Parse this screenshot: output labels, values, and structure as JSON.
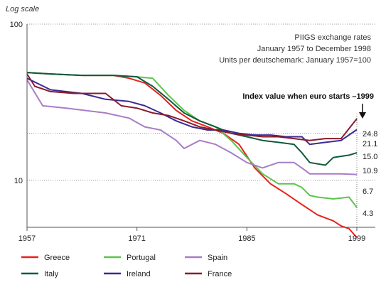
{
  "chart_data": {
    "type": "line",
    "scale_label": "Log scale",
    "notes": [
      "PIIGS exchange rates",
      "January 1957 to December 1998",
      "Units per deutschemark: January 1957=100"
    ],
    "annotation": "Index value when euro starts –1999",
    "y_scale": "log",
    "ylim": [
      5,
      100
    ],
    "xlim": [
      1957,
      1999
    ],
    "x_ticks": [
      "1957",
      "1971",
      "1985",
      "1999"
    ],
    "y_ticks": [
      "100",
      "10"
    ],
    "legend_placement": "bottom",
    "series": [
      {
        "name": "Greece",
        "color": "#e8211d",
        "end_label": "4.3",
        "points": [
          [
            1957,
            49
          ],
          [
            1960,
            48
          ],
          [
            1964,
            47
          ],
          [
            1968,
            47
          ],
          [
            1970,
            45
          ],
          [
            1972,
            42
          ],
          [
            1974,
            35
          ],
          [
            1976,
            28
          ],
          [
            1978,
            24
          ],
          [
            1980,
            22
          ],
          [
            1982,
            20
          ],
          [
            1984,
            17
          ],
          [
            1986,
            12
          ],
          [
            1988,
            9.5
          ],
          [
            1990,
            8.2
          ],
          [
            1992,
            7
          ],
          [
            1994,
            6
          ],
          [
            1996,
            5.5
          ],
          [
            1997,
            5.1
          ],
          [
            1998,
            4.9
          ],
          [
            1999,
            4.3
          ]
        ]
      },
      {
        "name": "Portugal",
        "color": "#5dc44c",
        "end_label": "6.7",
        "points": [
          [
            1957,
            49
          ],
          [
            1960,
            48
          ],
          [
            1964,
            47
          ],
          [
            1968,
            47
          ],
          [
            1971,
            46
          ],
          [
            1973,
            45
          ],
          [
            1975,
            35
          ],
          [
            1977,
            28
          ],
          [
            1979,
            24
          ],
          [
            1981,
            22
          ],
          [
            1983,
            18
          ],
          [
            1985,
            14
          ],
          [
            1987,
            11
          ],
          [
            1989,
            9.5
          ],
          [
            1991,
            9.5
          ],
          [
            1992,
            9
          ],
          [
            1993,
            8
          ],
          [
            1994,
            7.8
          ],
          [
            1996,
            7.6
          ],
          [
            1998,
            7.8
          ],
          [
            1999,
            6.7
          ]
        ]
      },
      {
        "name": "Spain",
        "color": "#a77dc7",
        "end_label": "10.9",
        "points": [
          [
            1957,
            44
          ],
          [
            1959,
            30
          ],
          [
            1962,
            29
          ],
          [
            1967,
            27
          ],
          [
            1970,
            25
          ],
          [
            1972,
            22
          ],
          [
            1974,
            21
          ],
          [
            1976,
            18
          ],
          [
            1977,
            16
          ],
          [
            1979,
            18
          ],
          [
            1981,
            17
          ],
          [
            1983,
            15
          ],
          [
            1985,
            13
          ],
          [
            1987,
            12
          ],
          [
            1989,
            13
          ],
          [
            1991,
            13
          ],
          [
            1992,
            12
          ],
          [
            1993,
            11
          ],
          [
            1995,
            11
          ],
          [
            1997,
            11
          ],
          [
            1999,
            10.9
          ]
        ]
      },
      {
        "name": "Italy",
        "color": "#0f5a3c",
        "end_label": "15.0",
        "points": [
          [
            1957,
            49
          ],
          [
            1960,
            48
          ],
          [
            1964,
            47
          ],
          [
            1968,
            47
          ],
          [
            1971,
            46
          ],
          [
            1973,
            40
          ],
          [
            1975,
            33
          ],
          [
            1977,
            27
          ],
          [
            1979,
            24
          ],
          [
            1981,
            22
          ],
          [
            1983,
            20
          ],
          [
            1985,
            19
          ],
          [
            1987,
            18
          ],
          [
            1989,
            17.5
          ],
          [
            1991,
            17
          ],
          [
            1992,
            15
          ],
          [
            1993,
            13
          ],
          [
            1995,
            12.5
          ],
          [
            1996,
            14
          ],
          [
            1998,
            14.5
          ],
          [
            1999,
            15.0
          ]
        ]
      },
      {
        "name": "Ireland",
        "color": "#3b2b93",
        "end_label": "21.1",
        "points": [
          [
            1957,
            45
          ],
          [
            1960,
            38
          ],
          [
            1964,
            36
          ],
          [
            1967,
            33
          ],
          [
            1970,
            32
          ],
          [
            1972,
            30
          ],
          [
            1974,
            27
          ],
          [
            1976,
            24
          ],
          [
            1978,
            22
          ],
          [
            1980,
            21
          ],
          [
            1982,
            21
          ],
          [
            1984,
            20
          ],
          [
            1986,
            19.5
          ],
          [
            1988,
            19.5
          ],
          [
            1990,
            19
          ],
          [
            1992,
            19
          ],
          [
            1993,
            17
          ],
          [
            1995,
            17.5
          ],
          [
            1997,
            18
          ],
          [
            1999,
            21.1
          ]
        ]
      },
      {
        "name": "France",
        "color": "#8b1a2b",
        "end_label": "24.8",
        "points": [
          [
            1957,
            48
          ],
          [
            1958,
            40
          ],
          [
            1960,
            37
          ],
          [
            1963,
            36
          ],
          [
            1967,
            36
          ],
          [
            1969,
            30
          ],
          [
            1971,
            29
          ],
          [
            1973,
            27
          ],
          [
            1975,
            26
          ],
          [
            1977,
            24
          ],
          [
            1979,
            22
          ],
          [
            1981,
            21
          ],
          [
            1983,
            20
          ],
          [
            1985,
            19.5
          ],
          [
            1987,
            19
          ],
          [
            1989,
            19
          ],
          [
            1991,
            18.5
          ],
          [
            1993,
            18
          ],
          [
            1995,
            18.5
          ],
          [
            1997,
            18.5
          ],
          [
            1999,
            24.8
          ]
        ]
      }
    ]
  }
}
